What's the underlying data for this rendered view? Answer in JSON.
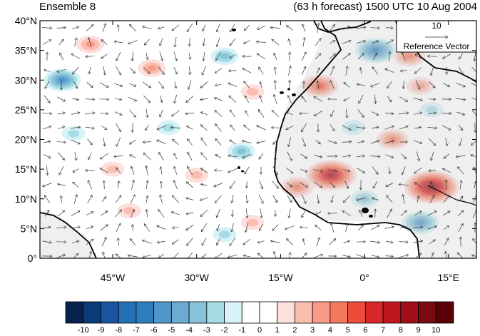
{
  "titles": {
    "left": "Ensemble 8",
    "right": "(63 h forecast) 1500 UTC 10 Aug 2004"
  },
  "map": {
    "lat_labels": [
      "40°N",
      "35°N",
      "30°N",
      "25°N",
      "20°N",
      "15°N",
      "10°N",
      "5°N",
      "0°"
    ],
    "lon_labels": [
      "45°W",
      "30°W",
      "15°W",
      "0°",
      "15°E"
    ],
    "lat_range": [
      0,
      40
    ],
    "lon_range": [
      -58,
      20
    ],
    "land_color": "#d0d0d0",
    "coast_color": "#000000"
  },
  "reference_vector": {
    "magnitude": "10",
    "label": "Reference Vector"
  },
  "colorbar": {
    "labels": [
      "-10",
      "-9",
      "-8",
      "-7",
      "-6",
      "-5",
      "-4",
      "-3",
      "-2",
      "-1",
      "0",
      "1",
      "2",
      "3",
      "4",
      "5",
      "6",
      "7",
      "8",
      "9",
      "10"
    ],
    "colors": [
      "#08224f",
      "#0b3a78",
      "#1a559f",
      "#2370b5",
      "#2c7ebb",
      "#4f97c9",
      "#6aaad3",
      "#86c2d9",
      "#a6dce3",
      "#d8f3f7",
      "#ffffff",
      "#ffffff",
      "#fde0dd",
      "#fbbdb0",
      "#f89a85",
      "#f4795e",
      "#ec4c39",
      "#d8272a",
      "#bf1720",
      "#a00f18",
      "#7a0a10",
      "#5a0008"
    ]
  },
  "field_blobs": [
    {
      "lon": -49,
      "lat": 36,
      "value": 3
    },
    {
      "lon": -54,
      "lat": 30,
      "value": -5
    },
    {
      "lon": -38,
      "lat": 32,
      "value": 3
    },
    {
      "lon": -25,
      "lat": 34,
      "value": -3
    },
    {
      "lon": -20,
      "lat": 28,
      "value": 2
    },
    {
      "lon": -8,
      "lat": 29,
      "value": 5
    },
    {
      "lon": 2,
      "lat": 35,
      "value": -6
    },
    {
      "lon": 8,
      "lat": 34,
      "value": 4
    },
    {
      "lon": 10,
      "lat": 29,
      "value": 3
    },
    {
      "lon": 12,
      "lat": 25,
      "value": -2
    },
    {
      "lon": -6,
      "lat": 14,
      "value": 8
    },
    {
      "lon": -12,
      "lat": 12,
      "value": 4
    },
    {
      "lon": 12,
      "lat": 12,
      "value": 9
    },
    {
      "lon": 10,
      "lat": 6,
      "value": -5
    },
    {
      "lon": 5,
      "lat": 20,
      "value": 4
    },
    {
      "lon": -30,
      "lat": 14,
      "value": 2
    },
    {
      "lon": -45,
      "lat": 15,
      "value": 2
    },
    {
      "lon": -42,
      "lat": 8,
      "value": 2
    },
    {
      "lon": -22,
      "lat": 18,
      "value": -3
    },
    {
      "lon": -52,
      "lat": 21,
      "value": -2
    },
    {
      "lon": -35,
      "lat": 22,
      "value": -2
    },
    {
      "lon": -2,
      "lat": 22,
      "value": -2
    },
    {
      "lon": -25,
      "lat": 4,
      "value": -2
    },
    {
      "lon": 0,
      "lat": 10,
      "value": -3
    },
    {
      "lon": -20,
      "lat": 6,
      "value": 2
    }
  ]
}
